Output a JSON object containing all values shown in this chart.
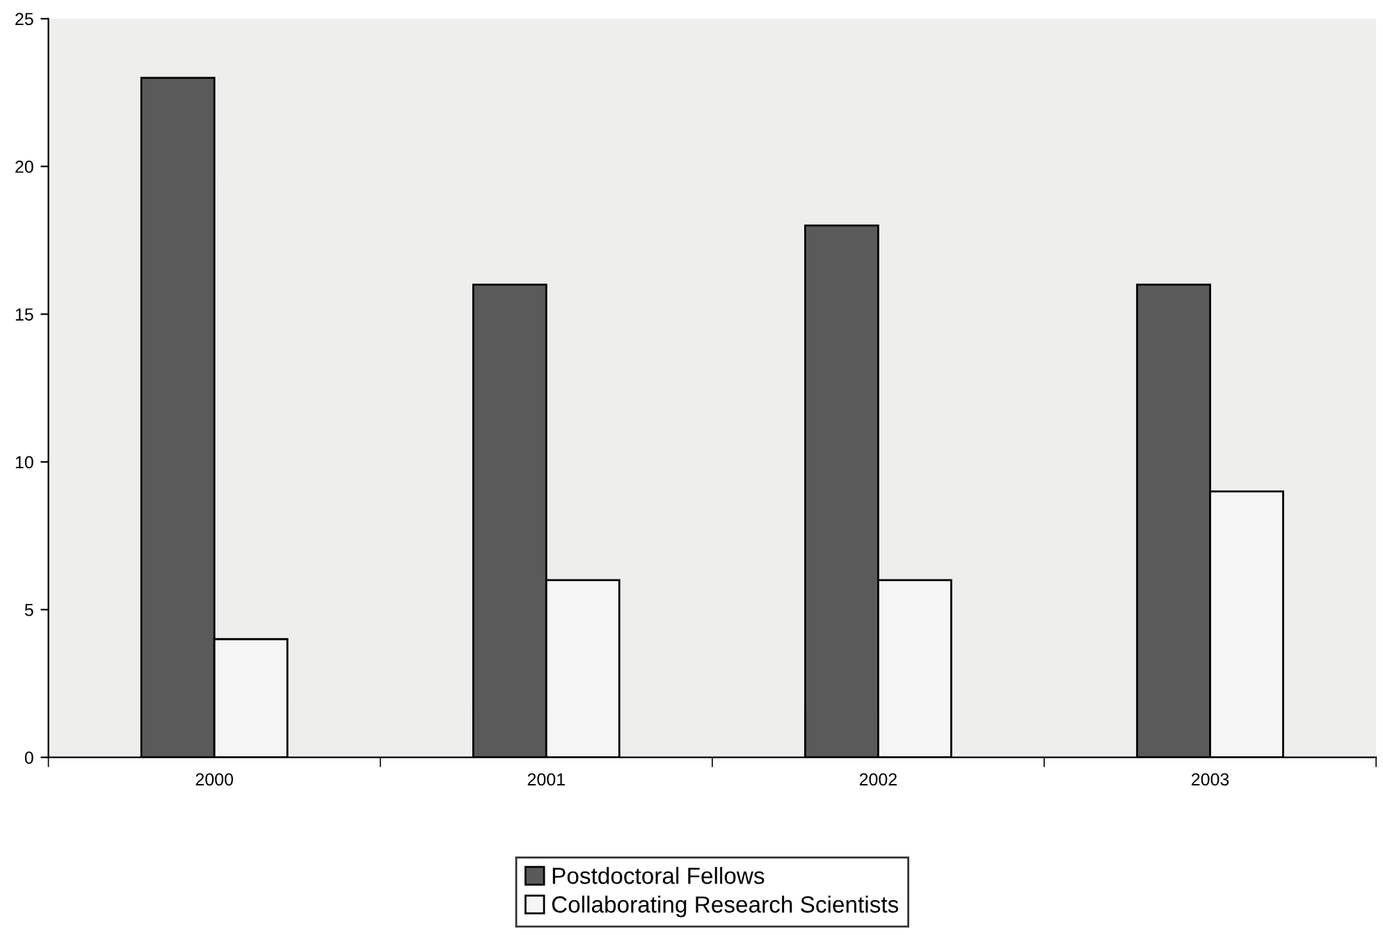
{
  "chart_data": {
    "type": "bar",
    "categories": [
      "2000",
      "2001",
      "2002",
      "2003"
    ],
    "series": [
      {
        "name": "Postdoctoral Fellows",
        "color": "#5a5a5a",
        "values": [
          23,
          16,
          18,
          16
        ]
      },
      {
        "name": "Collaborating Research Scientists",
        "color": "#f5f5f5",
        "values": [
          4,
          6,
          6,
          9
        ]
      }
    ],
    "ylim": [
      0,
      25
    ],
    "yticks": [
      0,
      5,
      10,
      15,
      20,
      25
    ],
    "grid": false,
    "legend": "bottom"
  }
}
